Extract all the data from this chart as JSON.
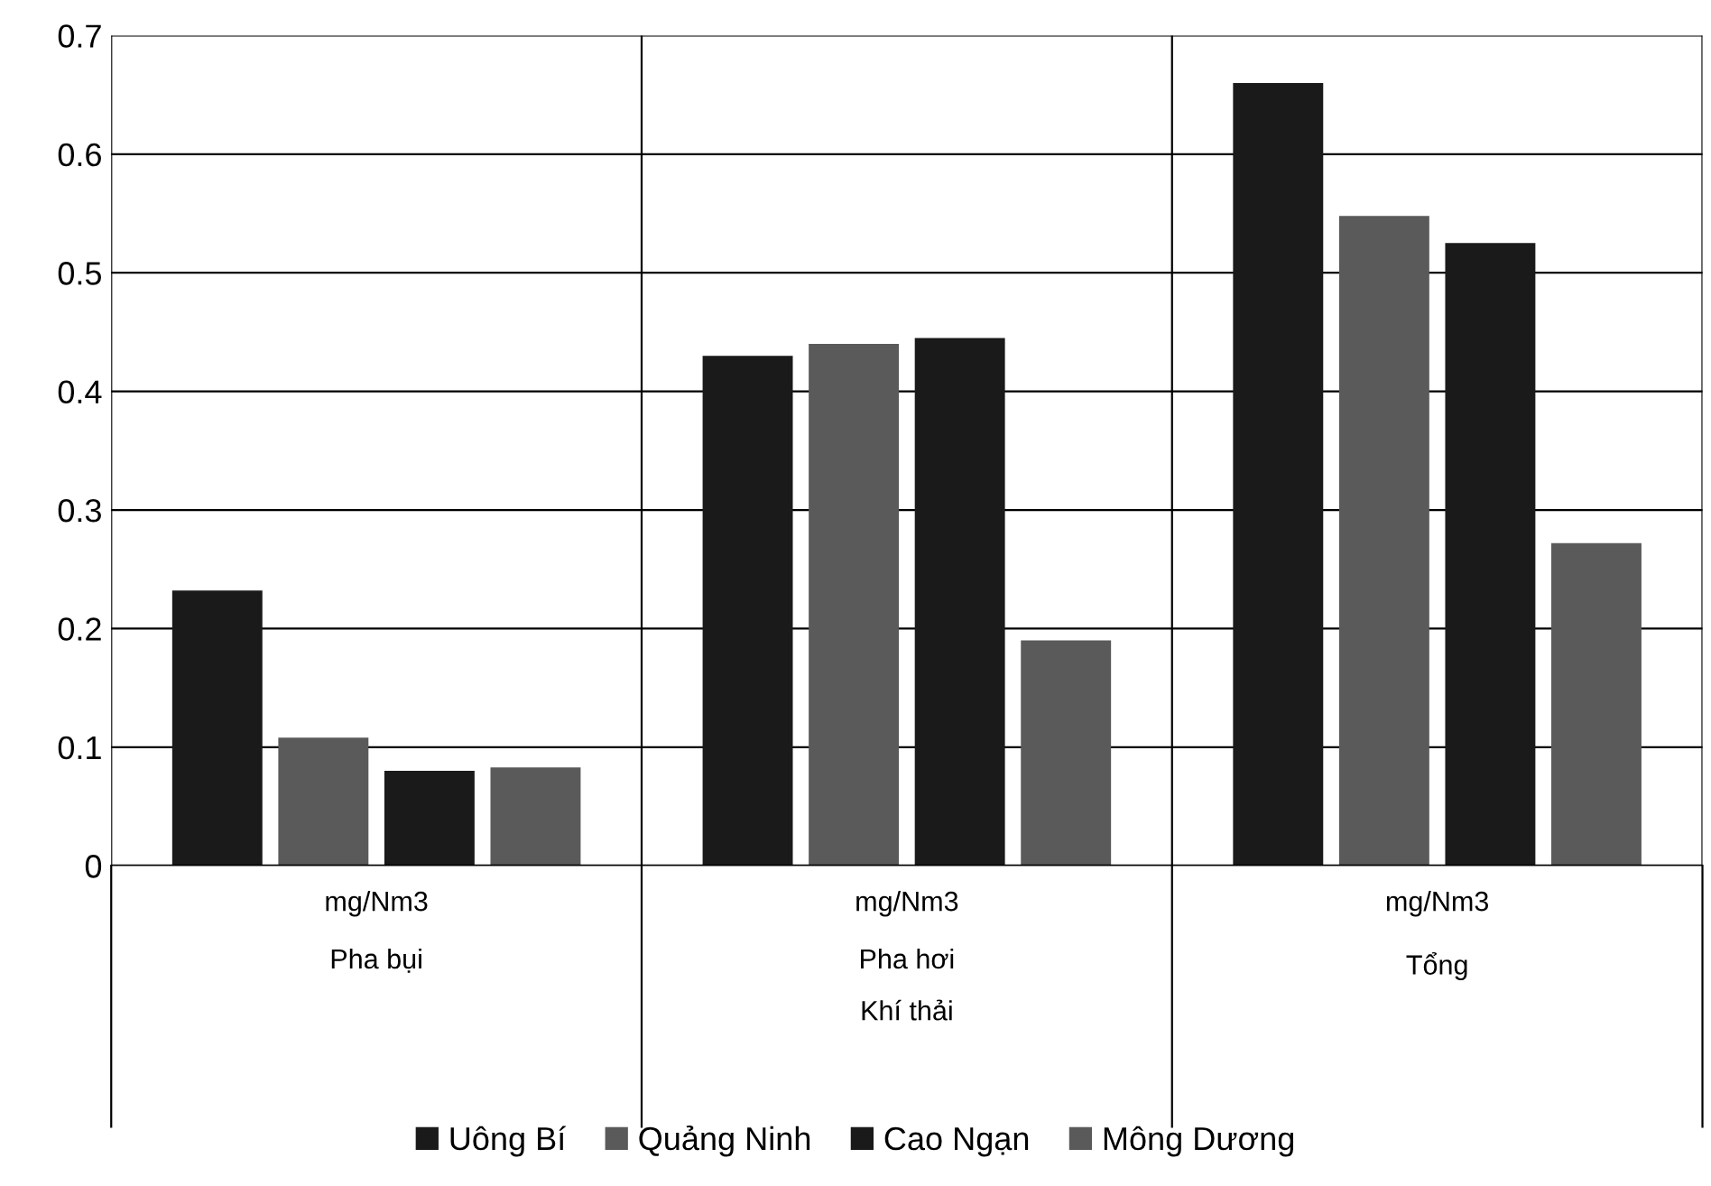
{
  "chart_data": {
    "type": "bar",
    "categories": [
      "mg/Nm3\nPha bụi",
      "mg/Nm3\nPha hơi",
      "mg/Nm3\nTổng"
    ],
    "xlabel": "Khí thải",
    "series": [
      {
        "name": "Uông Bí",
        "color": "#1a1a1a",
        "values": [
          0.232,
          0.43,
          0.66
        ]
      },
      {
        "name": "Quảng Ninh",
        "color": "#5a5a5a",
        "values": [
          0.108,
          0.44,
          0.548
        ]
      },
      {
        "name": "Cao Ngạn",
        "color": "#1a1a1a",
        "values": [
          0.08,
          0.445,
          0.525
        ]
      },
      {
        "name": "Mông Dương",
        "color": "#5a5a5a",
        "values": [
          0.083,
          0.19,
          0.272
        ]
      }
    ],
    "ylim": [
      0,
      0.7
    ],
    "yticks": [
      0,
      0.1,
      0.2,
      0.3,
      0.4,
      0.5,
      0.6,
      0.7
    ],
    "grid": "y",
    "legend": "bottom"
  }
}
